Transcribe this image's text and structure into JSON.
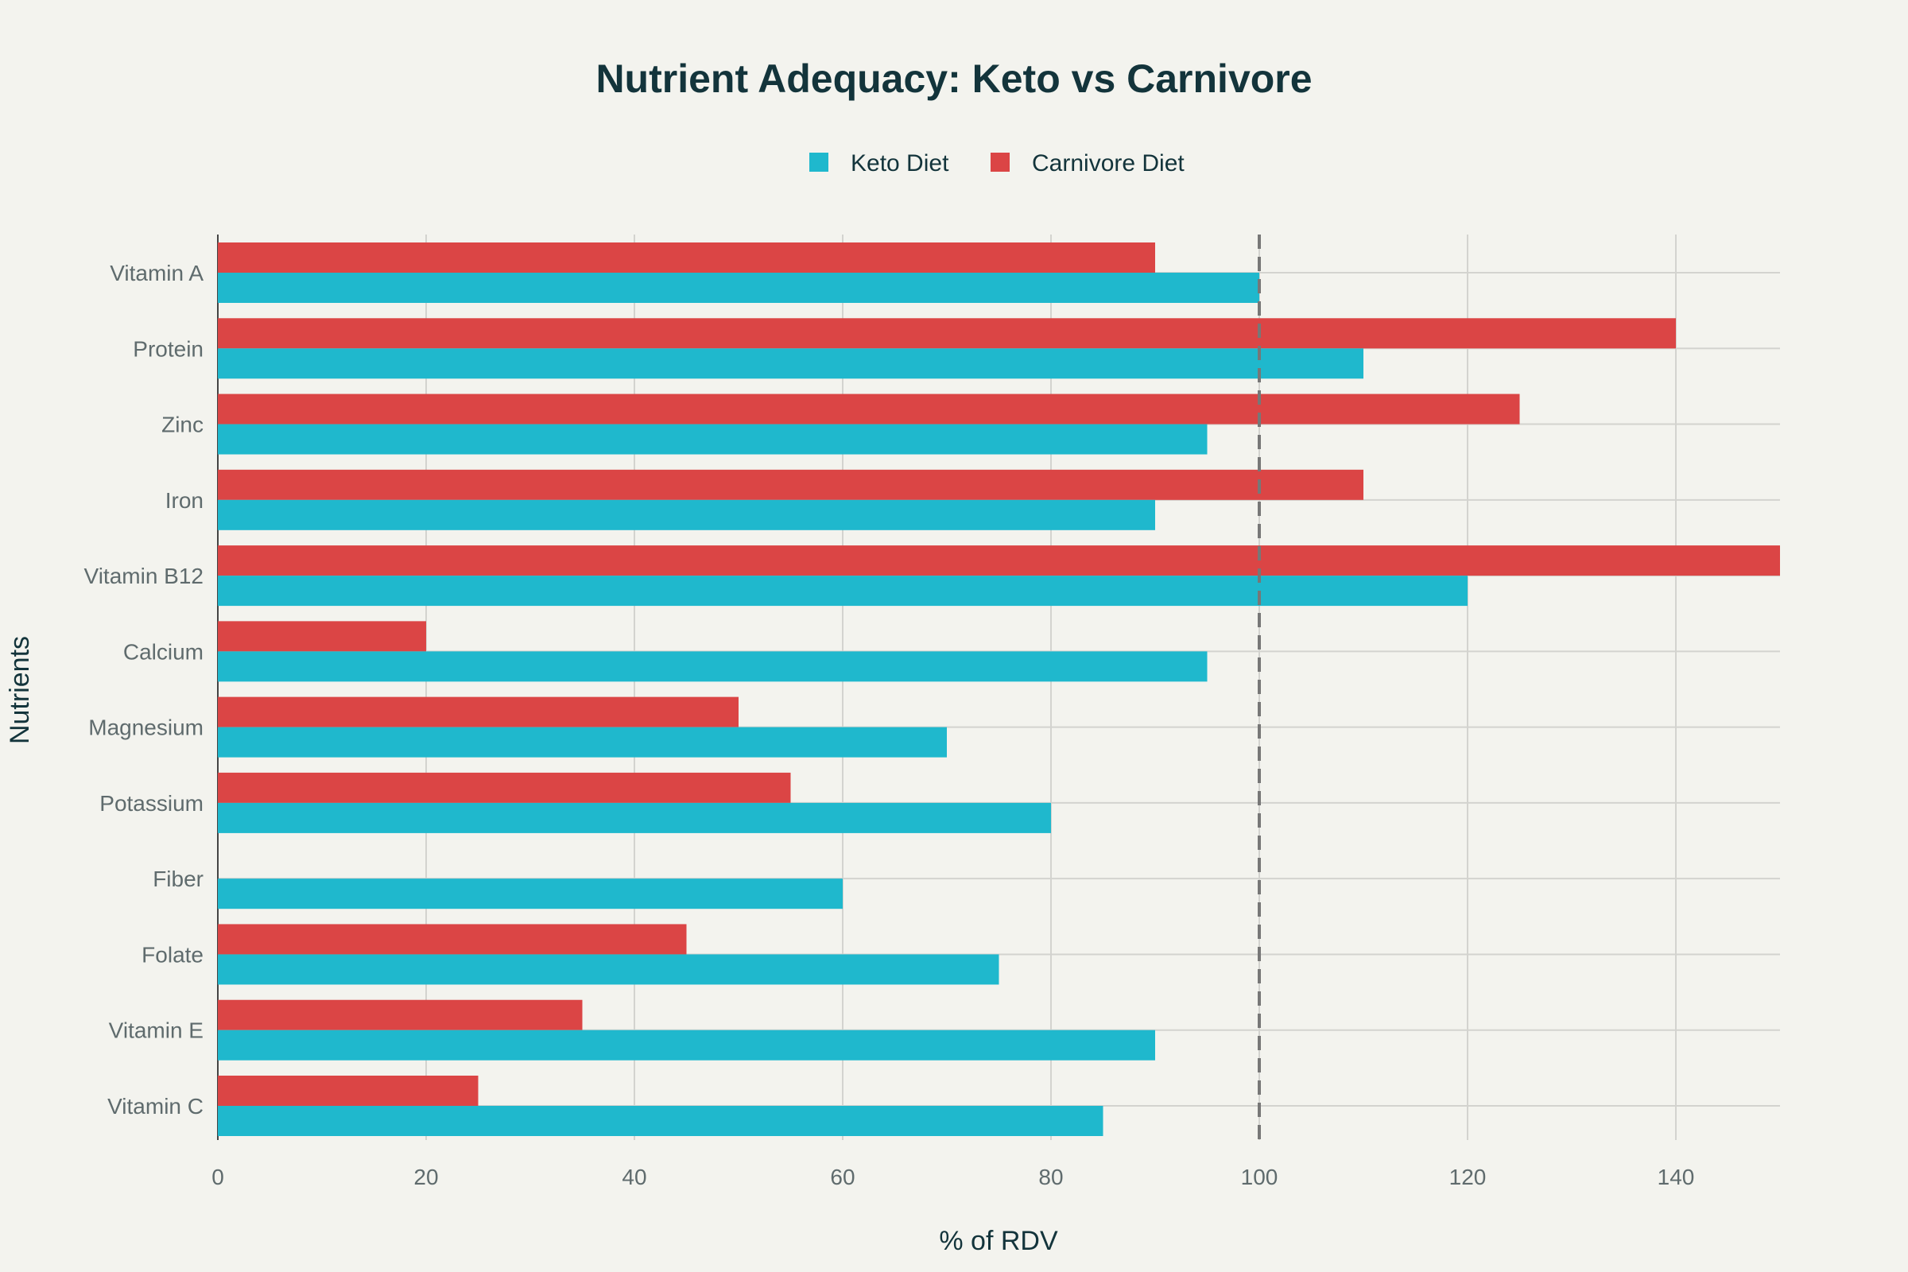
{
  "chart_data": {
    "type": "bar",
    "orientation": "horizontal",
    "title": "Nutrient Adequacy: Keto vs Carnivore",
    "xlabel": "% of RDV",
    "ylabel": "Nutrients",
    "xlim": [
      0,
      150
    ],
    "xticks": [
      0,
      20,
      40,
      60,
      80,
      100,
      120,
      140
    ],
    "grid": true,
    "legend_position": "top-center",
    "reference_line": {
      "x": 100,
      "style": "dashed"
    },
    "categories": [
      "Vitamin A",
      "Protein",
      "Zinc",
      "Iron",
      "Vitamin B12",
      "Calcium",
      "Magnesium",
      "Potassium",
      "Fiber",
      "Folate",
      "Vitamin E",
      "Vitamin C"
    ],
    "series": [
      {
        "name": "Keto Diet",
        "color": "#1FB8CD",
        "values": [
          100,
          110,
          95,
          90,
          120,
          95,
          70,
          80,
          60,
          75,
          90,
          85
        ]
      },
      {
        "name": "Carnivore Diet",
        "color": "#DB4545",
        "values": [
          90,
          140,
          125,
          110,
          150,
          20,
          50,
          55,
          0,
          45,
          35,
          25
        ]
      }
    ]
  }
}
